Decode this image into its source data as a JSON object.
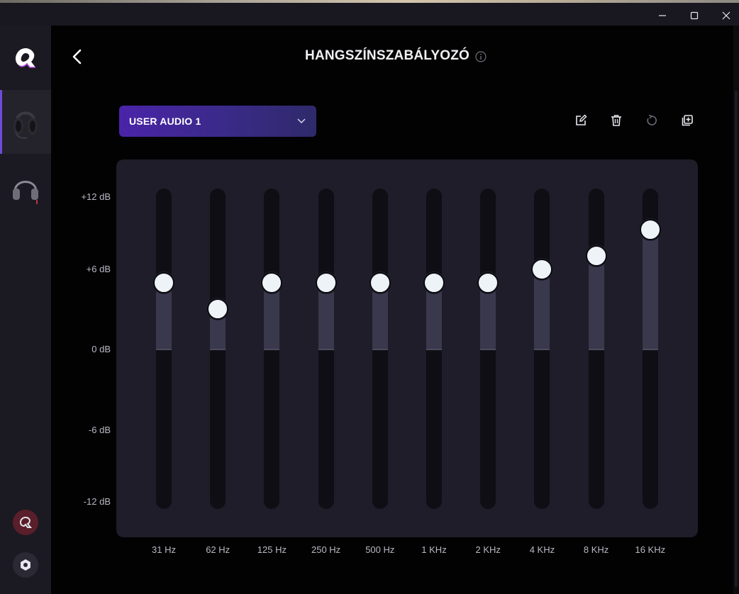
{
  "window": {
    "controls": [
      "minimize-icon",
      "maximize-icon",
      "close-icon"
    ]
  },
  "sidebar": {
    "logo_icon": "app-logo-icon",
    "devices": [
      {
        "name": "headset-wireless",
        "icon": "headset-image-icon",
        "active": true
      },
      {
        "name": "headset-generic",
        "icon": "headphones-icon",
        "active": false
      }
    ],
    "bottom_buttons": [
      {
        "name": "profile-button",
        "icon": "app-logo-icon",
        "color": "#5a1f2a"
      },
      {
        "name": "settings-button",
        "icon": "gear-icon",
        "color": "#2a2934"
      }
    ]
  },
  "header": {
    "title": "HANGSZÍNSZABÁLYOZÓ",
    "back_icon": "chevron-left-icon",
    "info_icon": "info-icon"
  },
  "preset": {
    "selected": "USER AUDIO 1",
    "icon": "chevron-down-icon"
  },
  "toolbar": {
    "icons": [
      "edit-icon",
      "trash-icon",
      "reset-icon",
      "add-copy-icon"
    ]
  },
  "equalizer": {
    "db_range": [
      -12,
      12
    ],
    "db_labels": [
      "+12 dB",
      "+6 dB",
      "0 dB",
      "-6 dB",
      "-12 dB"
    ],
    "bands": [
      {
        "freq": "31 Hz",
        "gain_db": 5
      },
      {
        "freq": "62 Hz",
        "gain_db": 3
      },
      {
        "freq": "125 Hz",
        "gain_db": 5
      },
      {
        "freq": "250 Hz",
        "gain_db": 5
      },
      {
        "freq": "500 Hz",
        "gain_db": 5
      },
      {
        "freq": "1 KHz",
        "gain_db": 5
      },
      {
        "freq": "2 KHz",
        "gain_db": 5
      },
      {
        "freq": "4 KHz",
        "gain_db": 6
      },
      {
        "freq": "8 KHz",
        "gain_db": 7
      },
      {
        "freq": "16 KHz",
        "gain_db": 9
      }
    ],
    "accent_color": "#4a24a8",
    "track_color": "#0f0e15",
    "fill_color": "#3a384c",
    "knob_color": "#eef3f8"
  }
}
